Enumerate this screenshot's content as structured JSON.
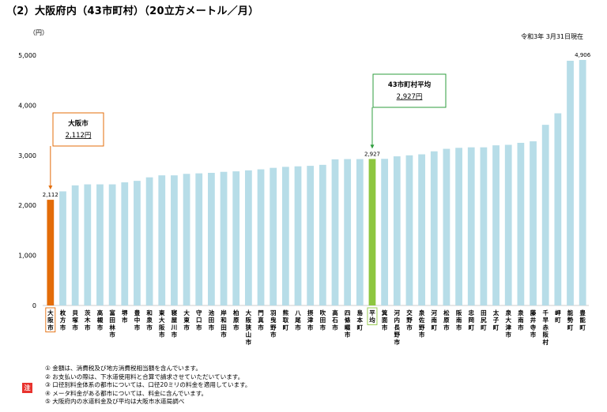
{
  "title": "（2）大阪府内（43市町村）（20立方メートル／月）",
  "date_note": "令和3年 3月31日現在",
  "chart_data": {
    "type": "bar",
    "yunit": "（円）",
    "ylim": [
      0,
      5000
    ],
    "yticks": [
      "0",
      "1,000",
      "2,000",
      "3,000",
      "4,000",
      "5,000"
    ],
    "grid": false,
    "categories": [
      "大阪市",
      "枚方市",
      "貝塚市",
      "茨木市",
      "高槻市",
      "富田林市",
      "堺市",
      "豊中市",
      "和泉市",
      "東大阪市",
      "寝屋川市",
      "大東市",
      "守口市",
      "池田市",
      "岸和田市",
      "柏原市",
      "大阪狭山市",
      "門真市",
      "羽曳野市",
      "熊取町",
      "八尾市",
      "摂津市",
      "吹田市",
      "高石市",
      "四條畷市",
      "島本町",
      "平均",
      "箕面市",
      "河内長野市",
      "交野市",
      "泉佐野市",
      "河南町",
      "松原市",
      "阪南市",
      "忠岡町",
      "田尻町",
      "太子町",
      "泉大津市",
      "泉南市",
      "藤井寺市",
      "千早赤阪村",
      "岬町",
      "能勢町",
      "豊能町"
    ],
    "values": [
      2112,
      2280,
      2400,
      2420,
      2420,
      2420,
      2460,
      2490,
      2560,
      2600,
      2600,
      2630,
      2640,
      2650,
      2670,
      2680,
      2700,
      2720,
      2750,
      2770,
      2780,
      2790,
      2810,
      2920,
      2925,
      2925,
      2927,
      2930,
      2980,
      3000,
      3020,
      3080,
      3130,
      3150,
      3160,
      3160,
      3200,
      3210,
      3250,
      3280,
      3610,
      3840,
      4890,
      4906
    ],
    "data_labels": [
      {
        "category": "大阪市",
        "text": "2,112"
      },
      {
        "category": "平均",
        "text": "2,927"
      },
      {
        "category": "豊能町",
        "text": "4,906"
      }
    ],
    "highlight": {
      "大阪市": "#e36c09",
      "平均": "#8dc63f"
    },
    "bar_color": "#b7dde8",
    "callouts": [
      {
        "name": "大阪市",
        "value_text": "2,112円",
        "color": "#e36c09"
      },
      {
        "name": "43市町村平均",
        "value_text": "2,927円",
        "color": "#2e9e3e"
      }
    ]
  },
  "notes": {
    "badge": "注",
    "items": [
      "① 金額は、消費税及び地方消費税相当額を含んでいます。",
      "② お支払いの際は、下水道使用料と合算で請求させていただいています。",
      "③ 口径別料金体系の都市については、口径20ミリの料金を適用しています。",
      "④ メータ料金がある都市については、料金に含んでいます。",
      "⑤ 大阪府内の水道料金及び平均は大阪市水道局調べ"
    ]
  }
}
